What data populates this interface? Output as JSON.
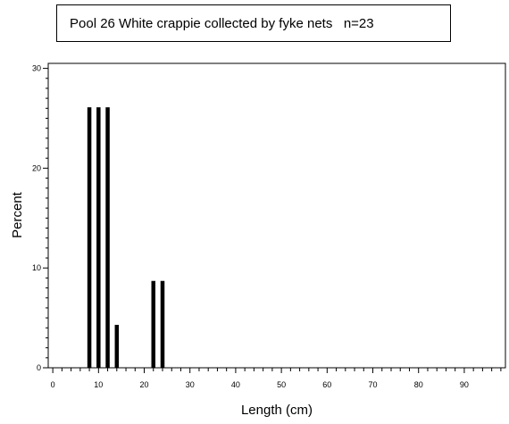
{
  "chart_data": {
    "type": "bar",
    "title": "Pool 26 White crappie collected by fyke nets   n=23",
    "xlabel": "Length (cm)",
    "ylabel": "Percent",
    "xlim": [
      -1,
      99
    ],
    "ylim": [
      0,
      30.5
    ],
    "x_ticks": [
      0,
      10,
      20,
      30,
      40,
      50,
      60,
      70,
      80,
      90
    ],
    "x_minor_step": 2,
    "y_ticks": [
      0,
      10,
      20,
      30
    ],
    "y_minor_step": 1,
    "bar_color": "#000000",
    "series": [
      {
        "x": [
          8,
          10,
          12,
          14,
          22,
          24
        ],
        "values": [
          26.1,
          26.1,
          26.1,
          4.3,
          8.7,
          8.7
        ]
      }
    ]
  }
}
